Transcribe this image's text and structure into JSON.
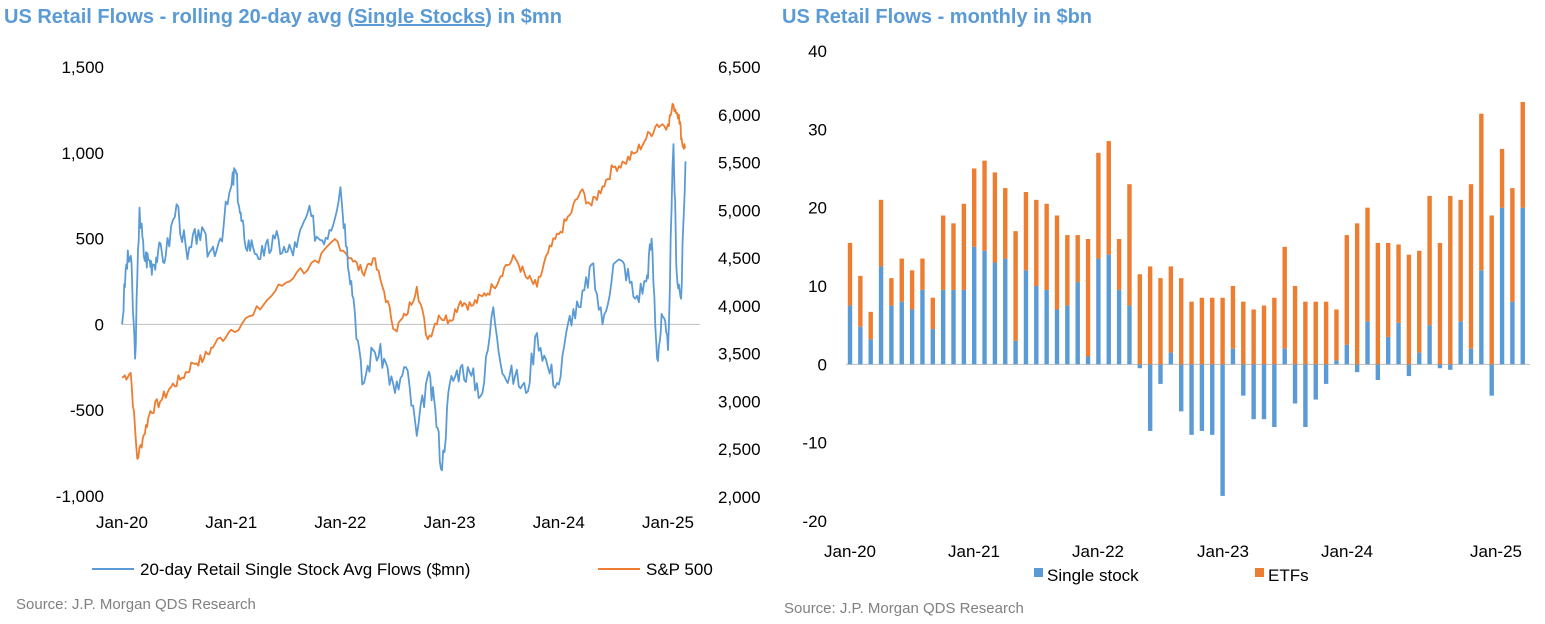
{
  "charts": {
    "left": {
      "title_parts": {
        "prefix": "US Retail Flows - rolling 20-day avg (",
        "underlined": "Single Stocks",
        "suffix": ") in $mn"
      },
      "source": "Source: J.P. Morgan QDS Research"
    },
    "right": {
      "title": "US Retail Flows - monthly in $bn",
      "source": "Source: J.P. Morgan QDS Research"
    }
  },
  "colors": {
    "blue": "#5b9bd5",
    "orange": "#ed7d31",
    "title": "#5b9bd5",
    "source": "#808080",
    "zero_line": "#bfbfbf"
  },
  "chart_data": [
    {
      "type": "line",
      "title": "US Retail Flows - rolling 20-day avg (Single Stocks) in $mn",
      "x_ticks": [
        "Jan-20",
        "Jan-21",
        "Jan-22",
        "Jan-23",
        "Jan-24",
        "Jan-25"
      ],
      "y_left_ticks": [
        "1,500",
        "1,000",
        "500",
        "0",
        "-500",
        "-1,000"
      ],
      "y_left_range": [
        -1000,
        1500
      ],
      "y_right_ticks": [
        "6,500",
        "6,000",
        "5,500",
        "5,000",
        "4,500",
        "4,000",
        "3,500",
        "3,000",
        "2,500",
        "2,000"
      ],
      "y_right_range": [
        2000,
        6500
      ],
      "legend_position": "bottom",
      "series": [
        {
          "name": "20-day Retail Single Stock Avg Flows ($mn)",
          "axis": "left",
          "color": "#5b9bd5",
          "x": [
            2020.0,
            2020.04,
            2020.08,
            2020.12,
            2020.16,
            2020.2,
            2020.24,
            2020.28,
            2020.33,
            2020.4,
            2020.5,
            2020.6,
            2020.7,
            2020.8,
            2020.9,
            2021.0,
            2021.04,
            2021.08,
            2021.12,
            2021.2,
            2021.3,
            2021.4,
            2021.5,
            2021.6,
            2021.7,
            2021.8,
            2021.9,
            2022.0,
            2022.06,
            2022.12,
            2022.2,
            2022.3,
            2022.4,
            2022.5,
            2022.6,
            2022.7,
            2022.8,
            2022.87,
            2022.93,
            2023.0,
            2023.1,
            2023.2,
            2023.3,
            2023.4,
            2023.5,
            2023.6,
            2023.7,
            2023.8,
            2023.9,
            2024.0,
            2024.1,
            2024.2,
            2024.3,
            2024.4,
            2024.5,
            2024.6,
            2024.7,
            2024.8,
            2024.85,
            2024.9,
            2024.95,
            2025.0,
            2025.05,
            2025.08,
            2025.12,
            2025.16
          ],
          "y": [
            0,
            350,
            400,
            -200,
            680,
            400,
            380,
            350,
            420,
            400,
            700,
            380,
            550,
            420,
            500,
            800,
            900,
            650,
            500,
            450,
            400,
            500,
            420,
            450,
            650,
            500,
            550,
            800,
            450,
            150,
            -350,
            -150,
            -200,
            -400,
            -250,
            -650,
            -300,
            -500,
            -850,
            -350,
            -250,
            -300,
            -400,
            100,
            -300,
            -300,
            -400,
            -50,
            -250,
            -350,
            50,
            100,
            350,
            0,
            350,
            350,
            150,
            250,
            500,
            -200,
            50,
            -150,
            1050,
            300,
            150,
            950
          ]
        },
        {
          "name": "S&P 500",
          "axis": "right",
          "color": "#ed7d31",
          "x": [
            2020.0,
            2020.08,
            2020.14,
            2020.2,
            2020.26,
            2020.35,
            2020.45,
            2020.55,
            2020.65,
            2020.75,
            2020.85,
            2021.0,
            2021.2,
            2021.4,
            2021.6,
            2021.8,
            2021.95,
            2022.1,
            2022.2,
            2022.3,
            2022.4,
            2022.5,
            2022.6,
            2022.7,
            2022.8,
            2022.9,
            2023.0,
            2023.1,
            2023.2,
            2023.3,
            2023.4,
            2023.5,
            2023.6,
            2023.7,
            2023.8,
            2023.9,
            2024.0,
            2024.1,
            2024.2,
            2024.3,
            2024.4,
            2024.5,
            2024.6,
            2024.7,
            2024.8,
            2024.9,
            2025.0,
            2025.05,
            2025.1,
            2025.13,
            2025.16
          ],
          "y": [
            3250,
            3300,
            2400,
            2650,
            2900,
            3000,
            3150,
            3250,
            3400,
            3450,
            3600,
            3750,
            3900,
            4150,
            4350,
            4450,
            4700,
            4500,
            4350,
            4500,
            4150,
            3750,
            3900,
            4200,
            3650,
            3900,
            3850,
            4050,
            4000,
            4100,
            4200,
            4400,
            4500,
            4300,
            4200,
            4550,
            4750,
            4950,
            5200,
            5050,
            5250,
            5450,
            5500,
            5600,
            5750,
            5900,
            5900,
            6100,
            6000,
            5700,
            5650
          ]
        }
      ]
    },
    {
      "type": "bar",
      "stacked": true,
      "title": "US Retail Flows - monthly in $bn",
      "x_ticks": [
        "Jan-20",
        "Jan-21",
        "Jan-22",
        "Jan-23",
        "Jan-24",
        "Jan-25"
      ],
      "y_ticks": [
        "40",
        "30",
        "20",
        "10",
        "0",
        "-10",
        "-20"
      ],
      "y_range": [
        -20,
        40
      ],
      "legend_position": "bottom",
      "series": [
        {
          "name": "Single stock",
          "color": "#5b9bd5",
          "values": [
            7.5,
            4.8,
            3.2,
            12.5,
            7.5,
            8.0,
            7.0,
            9.5,
            4.5,
            9.5,
            9.5,
            9.5,
            15.0,
            14.5,
            13.0,
            13.5,
            3.0,
            12.0,
            10.0,
            9.5,
            7.0,
            7.5,
            10.5,
            1.0,
            13.5,
            14.0,
            9.5,
            7.5,
            -0.5,
            -8.5,
            -2.5,
            1.5,
            -6.0,
            -9.0,
            -8.5,
            -9.0,
            -16.8,
            2.0,
            -4.0,
            -7.0,
            -7.0,
            -8.0,
            2.0,
            -5.0,
            -8.0,
            -4.5,
            -2.5,
            0.5,
            2.5,
            -1.0,
            5.5,
            -2.0,
            3.5,
            5.3,
            -1.5,
            1.5,
            5.0,
            -0.5,
            -0.7,
            5.5,
            2.0,
            12.0,
            -4.0,
            20.0,
            8.0,
            20.0
          ],
          "note_values": "approximate"
        },
        {
          "name": "ETFs",
          "color": "#ed7d31",
          "values": [
            8.0,
            6.5,
            3.5,
            8.5,
            3.5,
            5.5,
            5.0,
            4.0,
            4.0,
            9.5,
            8.5,
            11.0,
            10.0,
            11.5,
            11.5,
            9.0,
            14.0,
            10.0,
            11.0,
            11.0,
            12.0,
            9.0,
            6.0,
            15.0,
            13.5,
            14.5,
            6.5,
            15.5,
            11.5,
            12.5,
            11.0,
            11.0,
            11.0,
            8.0,
            8.5,
            8.5,
            8.5,
            8.0,
            8.0,
            7.0,
            7.5,
            8.5,
            13.0,
            10.0,
            8.0,
            8.0,
            8.0,
            6.5,
            14.0,
            18.0,
            14.5,
            15.5,
            12.0,
            10.0,
            14.0,
            13.0,
            16.5,
            15.5,
            21.5,
            15.5,
            21.0,
            20.0,
            19.0,
            7.5,
            14.5,
            13.5
          ],
          "note_values": "approximate"
        }
      ]
    }
  ],
  "legend": {
    "left": [
      {
        "label": "20-day Retail Single Stock Avg Flows ($mn)",
        "color": "#5b9bd5"
      },
      {
        "label": "S&P 500",
        "color": "#ed7d31"
      }
    ],
    "right": [
      {
        "label": "Single stock",
        "color": "#5b9bd5"
      },
      {
        "label": "ETFs",
        "color": "#ed7d31"
      }
    ]
  }
}
